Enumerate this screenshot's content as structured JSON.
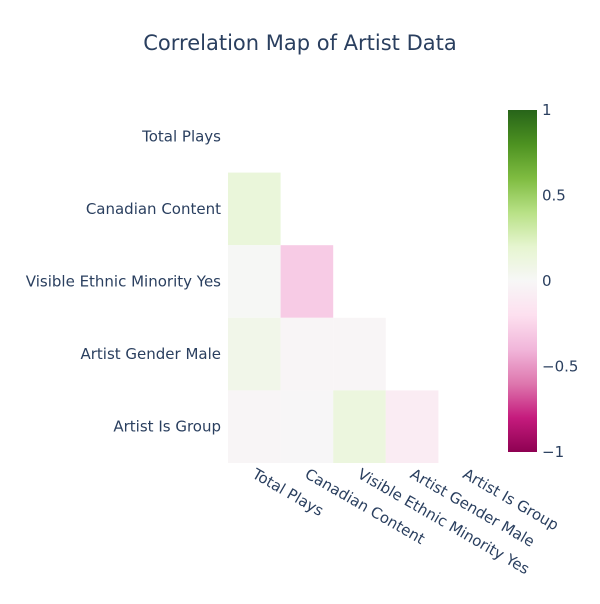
{
  "chart_data": {
    "type": "heatmap",
    "title": "Correlation Map of Artist Data",
    "variables": [
      "Total Plays",
      "Canadian Content",
      "Visible Ethnic Minority Yes",
      "Artist Gender Male",
      "Artist Is Group"
    ],
    "mask": "lower-triangle",
    "z": [
      [
        null,
        null,
        null,
        null,
        null
      ],
      [
        0.15,
        null,
        null,
        null,
        null
      ],
      [
        0.01,
        -0.3,
        null,
        null,
        null
      ],
      [
        0.07,
        -0.02,
        -0.02,
        null,
        null
      ],
      [
        -0.02,
        -0.01,
        0.13,
        -0.1,
        null
      ]
    ],
    "zmin": -1,
    "zmax": 1,
    "colorscale": "PiYG",
    "colors": {
      "neg_strong": "#8e0152",
      "neg_mid": "#c51b7d",
      "neg_mild": "#de77ae",
      "neg_light": "#f1b6da",
      "neg_faint": "#fde0ef",
      "zero": "#f7f7f7",
      "pos_faint": "#e6f5d0",
      "pos_light": "#b8e186",
      "pos_mild": "#7fbc41",
      "pos_mid": "#4d9221",
      "pos_strong": "#276419"
    },
    "colorbar": {
      "tick_values": [
        1,
        0.5,
        0,
        -0.5,
        -1
      ],
      "tick_labels": [
        "1",
        "0.5",
        "0",
        "−0.5",
        "−1"
      ]
    },
    "grid": false
  }
}
